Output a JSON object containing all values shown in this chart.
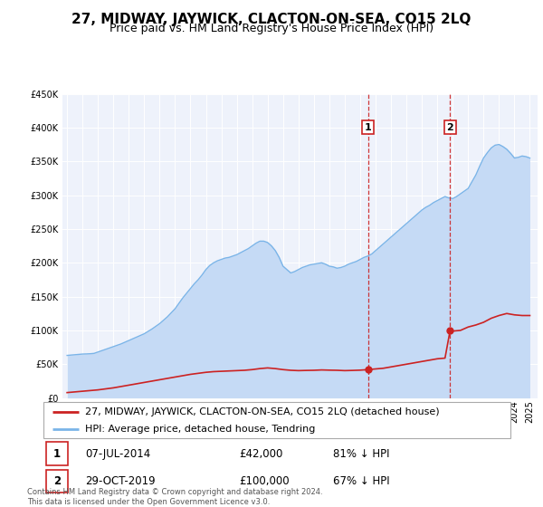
{
  "title": "27, MIDWAY, JAYWICK, CLACTON-ON-SEA, CO15 2LQ",
  "subtitle": "Price paid vs. HM Land Registry's House Price Index (HPI)",
  "ylim": [
    0,
    450000
  ],
  "xlim_start": 1994.7,
  "xlim_end": 2025.5,
  "plot_bg_color": "#eef2fb",
  "grid_color": "#ffffff",
  "hpi_color": "#7ab4e8",
  "hpi_fill_color": "#c5daf5",
  "price_color": "#cc2222",
  "marker1_date": 2014.52,
  "marker1_price": 42000,
  "marker2_date": 2019.83,
  "marker2_price": 100000,
  "legend_label1": "27, MIDWAY, JAYWICK, CLACTON-ON-SEA, CO15 2LQ (detached house)",
  "legend_label2": "HPI: Average price, detached house, Tendring",
  "annotation1_date": "07-JUL-2014",
  "annotation1_price": "£42,000",
  "annotation1_pct": "81% ↓ HPI",
  "annotation2_date": "29-OCT-2019",
  "annotation2_price": "£100,000",
  "annotation2_pct": "67% ↓ HPI",
  "footer": "Contains HM Land Registry data © Crown copyright and database right 2024.\nThis data is licensed under the Open Government Licence v3.0.",
  "title_fontsize": 11,
  "subtitle_fontsize": 9,
  "tick_fontsize": 7,
  "legend_fontsize": 8,
  "annot_fontsize": 8.5,
  "footer_fontsize": 6,
  "hpi_data": [
    [
      1995.0,
      63000
    ],
    [
      1995.25,
      63500
    ],
    [
      1995.5,
      64000
    ],
    [
      1995.75,
      64500
    ],
    [
      1996.0,
      65000
    ],
    [
      1996.25,
      65200
    ],
    [
      1996.5,
      65500
    ],
    [
      1996.75,
      66000
    ],
    [
      1997.0,
      68000
    ],
    [
      1997.25,
      70000
    ],
    [
      1997.5,
      72000
    ],
    [
      1997.75,
      74000
    ],
    [
      1998.0,
      76000
    ],
    [
      1998.25,
      78000
    ],
    [
      1998.5,
      80000
    ],
    [
      1998.75,
      82500
    ],
    [
      1999.0,
      85000
    ],
    [
      1999.25,
      87500
    ],
    [
      1999.5,
      90000
    ],
    [
      1999.75,
      92500
    ],
    [
      2000.0,
      95000
    ],
    [
      2000.25,
      98500
    ],
    [
      2000.5,
      102000
    ],
    [
      2000.75,
      106000
    ],
    [
      2001.0,
      110000
    ],
    [
      2001.25,
      115000
    ],
    [
      2001.5,
      120000
    ],
    [
      2001.75,
      126000
    ],
    [
      2002.0,
      132000
    ],
    [
      2002.25,
      140000
    ],
    [
      2002.5,
      148000
    ],
    [
      2002.75,
      155000
    ],
    [
      2003.0,
      162000
    ],
    [
      2003.25,
      169000
    ],
    [
      2003.5,
      175000
    ],
    [
      2003.75,
      182000
    ],
    [
      2004.0,
      190000
    ],
    [
      2004.25,
      196000
    ],
    [
      2004.5,
      200000
    ],
    [
      2004.75,
      203000
    ],
    [
      2005.0,
      205000
    ],
    [
      2005.25,
      207000
    ],
    [
      2005.5,
      208000
    ],
    [
      2005.75,
      210000
    ],
    [
      2006.0,
      212000
    ],
    [
      2006.25,
      215000
    ],
    [
      2006.5,
      218000
    ],
    [
      2006.75,
      221000
    ],
    [
      2007.0,
      225000
    ],
    [
      2007.25,
      229000
    ],
    [
      2007.5,
      232000
    ],
    [
      2007.75,
      232000
    ],
    [
      2008.0,
      230000
    ],
    [
      2008.25,
      225000
    ],
    [
      2008.5,
      218000
    ],
    [
      2008.75,
      208000
    ],
    [
      2009.0,
      195000
    ],
    [
      2009.25,
      190000
    ],
    [
      2009.5,
      185000
    ],
    [
      2009.75,
      187000
    ],
    [
      2010.0,
      190000
    ],
    [
      2010.25,
      193000
    ],
    [
      2010.5,
      195000
    ],
    [
      2010.75,
      197000
    ],
    [
      2011.0,
      198000
    ],
    [
      2011.25,
      199000
    ],
    [
      2011.5,
      200000
    ],
    [
      2011.75,
      198000
    ],
    [
      2012.0,
      195000
    ],
    [
      2012.25,
      194000
    ],
    [
      2012.5,
      192000
    ],
    [
      2012.75,
      193000
    ],
    [
      2013.0,
      195000
    ],
    [
      2013.25,
      198000
    ],
    [
      2013.5,
      200000
    ],
    [
      2013.75,
      202000
    ],
    [
      2014.0,
      205000
    ],
    [
      2014.25,
      208000
    ],
    [
      2014.5,
      210000
    ],
    [
      2014.75,
      213000
    ],
    [
      2015.0,
      218000
    ],
    [
      2015.25,
      223000
    ],
    [
      2015.5,
      228000
    ],
    [
      2015.75,
      233000
    ],
    [
      2016.0,
      238000
    ],
    [
      2016.25,
      243000
    ],
    [
      2016.5,
      248000
    ],
    [
      2016.75,
      253000
    ],
    [
      2017.0,
      258000
    ],
    [
      2017.25,
      263000
    ],
    [
      2017.5,
      268000
    ],
    [
      2017.75,
      273000
    ],
    [
      2018.0,
      278000
    ],
    [
      2018.25,
      282000
    ],
    [
      2018.5,
      285000
    ],
    [
      2018.75,
      289000
    ],
    [
      2019.0,
      292000
    ],
    [
      2019.25,
      295000
    ],
    [
      2019.5,
      298000
    ],
    [
      2019.75,
      296000
    ],
    [
      2020.0,
      295000
    ],
    [
      2020.25,
      298000
    ],
    [
      2020.5,
      302000
    ],
    [
      2020.75,
      306000
    ],
    [
      2021.0,
      310000
    ],
    [
      2021.25,
      320000
    ],
    [
      2021.5,
      330000
    ],
    [
      2021.75,
      343000
    ],
    [
      2022.0,
      355000
    ],
    [
      2022.25,
      363000
    ],
    [
      2022.5,
      370000
    ],
    [
      2022.75,
      374000
    ],
    [
      2023.0,
      375000
    ],
    [
      2023.25,
      372000
    ],
    [
      2023.5,
      368000
    ],
    [
      2023.75,
      362000
    ],
    [
      2024.0,
      355000
    ],
    [
      2024.25,
      356000
    ],
    [
      2024.5,
      358000
    ],
    [
      2024.75,
      357000
    ],
    [
      2025.0,
      355000
    ]
  ],
  "price_data": [
    [
      1995.0,
      8000
    ],
    [
      1995.5,
      9000
    ],
    [
      1996.0,
      10000
    ],
    [
      1996.5,
      11000
    ],
    [
      1997.0,
      12000
    ],
    [
      1997.5,
      13500
    ],
    [
      1998.0,
      15000
    ],
    [
      1998.5,
      17000
    ],
    [
      1999.0,
      19000
    ],
    [
      1999.5,
      21000
    ],
    [
      2000.0,
      23000
    ],
    [
      2000.5,
      25000
    ],
    [
      2001.0,
      27000
    ],
    [
      2001.5,
      29000
    ],
    [
      2002.0,
      31000
    ],
    [
      2002.5,
      33000
    ],
    [
      2003.0,
      35000
    ],
    [
      2003.5,
      36500
    ],
    [
      2004.0,
      38000
    ],
    [
      2004.5,
      39000
    ],
    [
      2005.0,
      39500
    ],
    [
      2005.5,
      40000
    ],
    [
      2006.0,
      40500
    ],
    [
      2006.5,
      41000
    ],
    [
      2007.0,
      42000
    ],
    [
      2007.5,
      43500
    ],
    [
      2008.0,
      44500
    ],
    [
      2008.5,
      43500
    ],
    [
      2009.0,
      42000
    ],
    [
      2009.5,
      41000
    ],
    [
      2010.0,
      40500
    ],
    [
      2010.5,
      40800
    ],
    [
      2011.0,
      41000
    ],
    [
      2011.5,
      41500
    ],
    [
      2012.0,
      41200
    ],
    [
      2012.5,
      41000
    ],
    [
      2013.0,
      40500
    ],
    [
      2013.5,
      40800
    ],
    [
      2014.0,
      41200
    ],
    [
      2014.52,
      42000
    ],
    [
      2015.0,
      43000
    ],
    [
      2015.5,
      44000
    ],
    [
      2016.0,
      46000
    ],
    [
      2016.5,
      48000
    ],
    [
      2017.0,
      50000
    ],
    [
      2017.5,
      52000
    ],
    [
      2018.0,
      54000
    ],
    [
      2018.5,
      56000
    ],
    [
      2019.0,
      58000
    ],
    [
      2019.5,
      59000
    ],
    [
      2019.83,
      100000
    ],
    [
      2020.0,
      99000
    ],
    [
      2020.5,
      100000
    ],
    [
      2021.0,
      105000
    ],
    [
      2021.5,
      108000
    ],
    [
      2022.0,
      112000
    ],
    [
      2022.5,
      118000
    ],
    [
      2023.0,
      122000
    ],
    [
      2023.5,
      125000
    ],
    [
      2024.0,
      123000
    ],
    [
      2024.5,
      122000
    ],
    [
      2025.0,
      122000
    ]
  ]
}
